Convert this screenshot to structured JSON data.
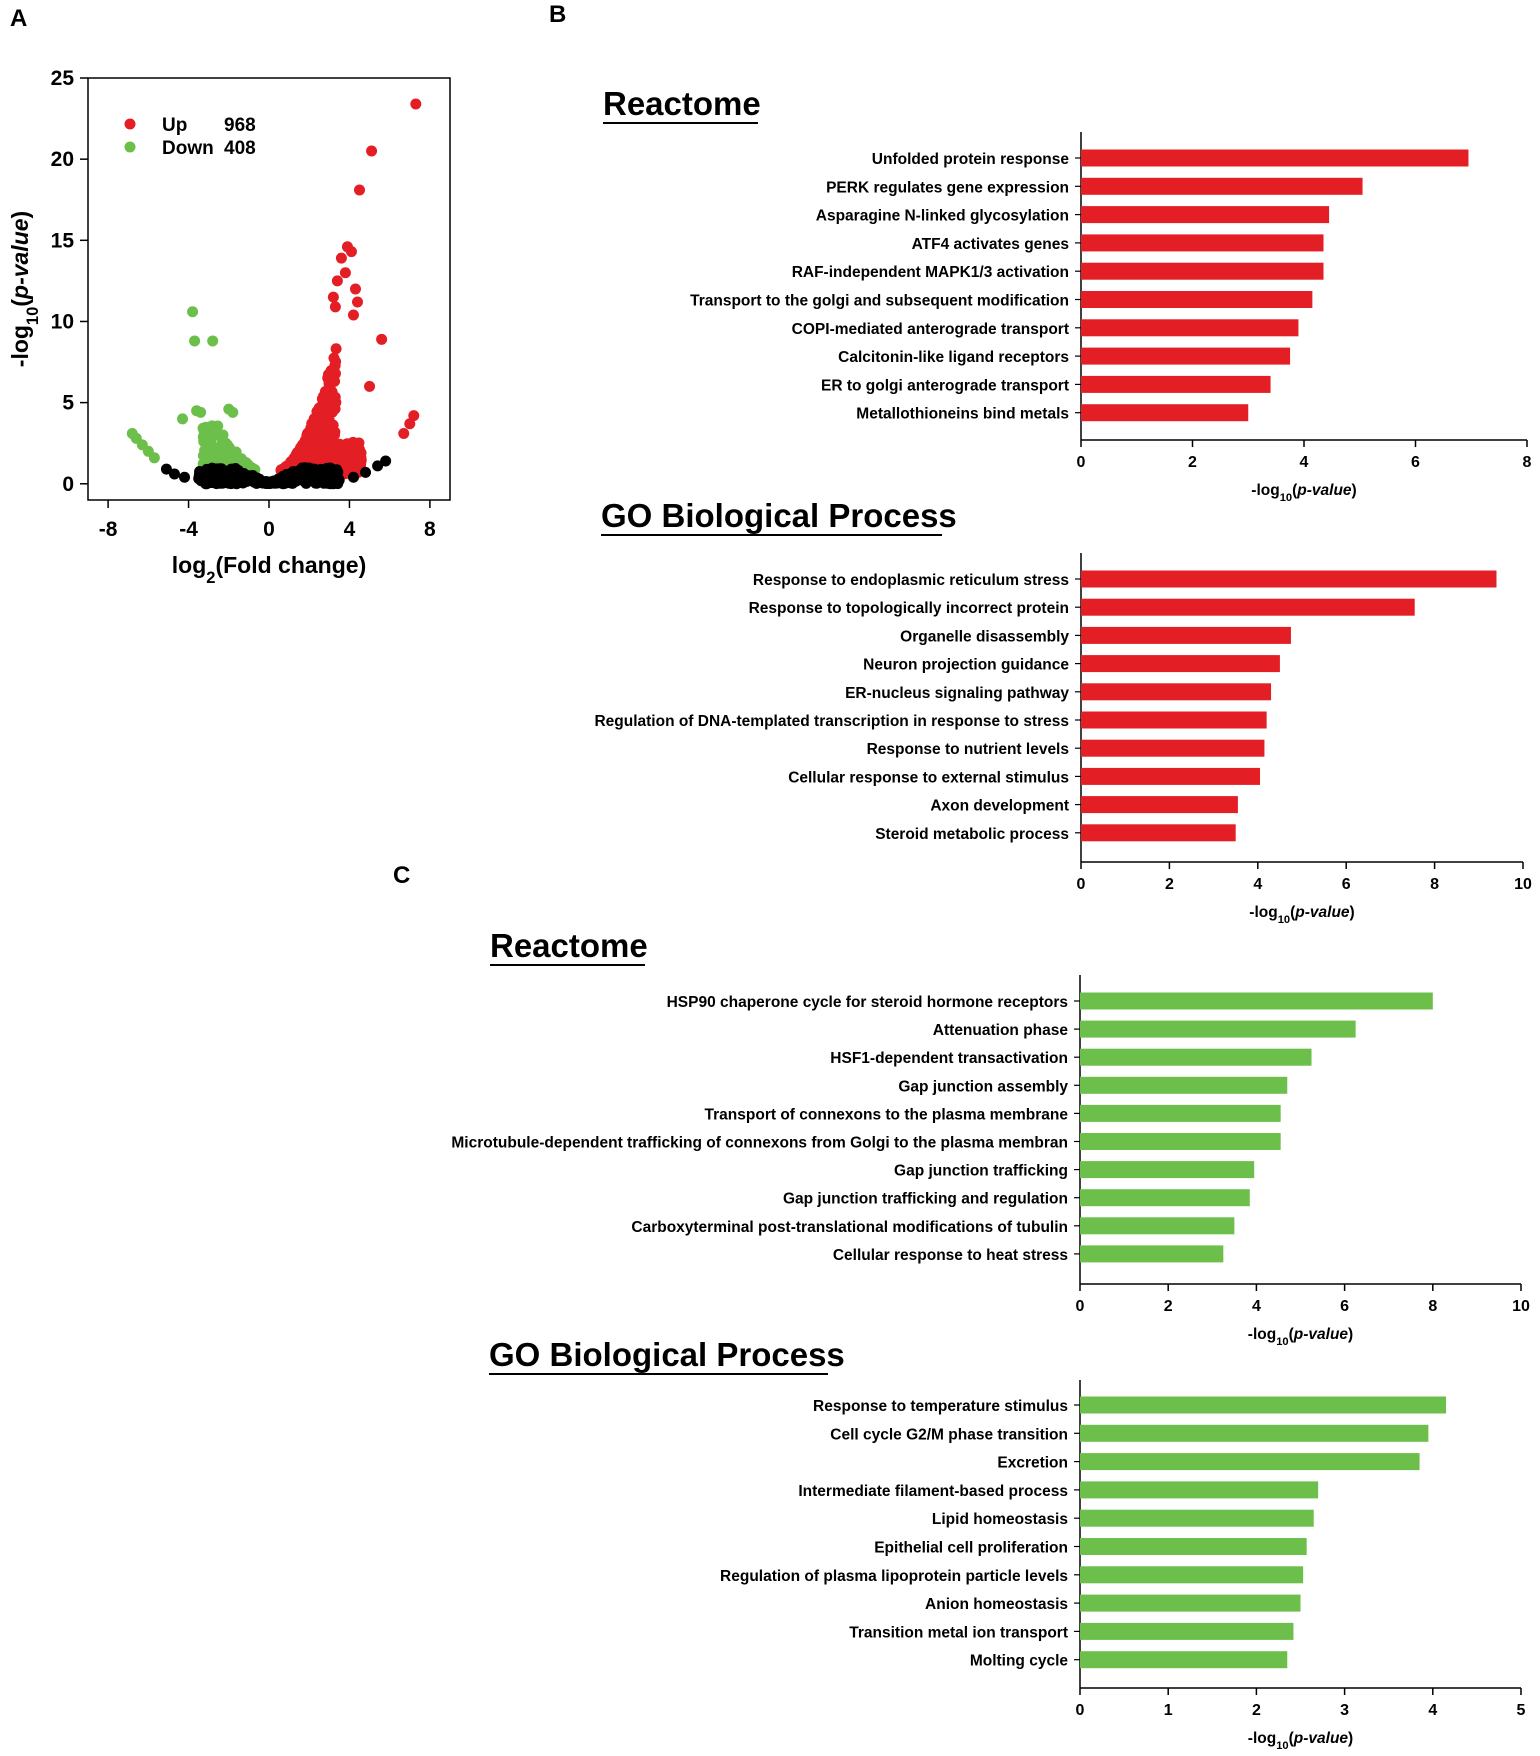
{
  "panels": {
    "A": "A",
    "B": "B",
    "C": "C"
  },
  "colors": {
    "up": "#e41e25",
    "down": "#6cbf4a",
    "ns": "#000000"
  },
  "chart_data": [
    {
      "id": "volcano",
      "type": "scatter",
      "title": "",
      "xlabel": "log2(Fold change)",
      "xlabel_parts": [
        "log",
        "2",
        "(Fold change)"
      ],
      "ylabel": "-log10(p-value)",
      "ylabel_parts": [
        "-log",
        "10",
        "(",
        "p-value",
        ")"
      ],
      "xlim": [
        -9,
        9
      ],
      "ylim": [
        -1,
        25
      ],
      "xticks": [
        -8,
        -4,
        0,
        4,
        8
      ],
      "yticks": [
        0,
        5,
        10,
        15,
        20,
        25
      ],
      "legend": [
        {
          "name": "Up",
          "count": "968"
        },
        {
          "name": "Down",
          "count": "408"
        }
      ],
      "series": [
        {
          "name": "Up",
          "points": [
            [
              7.3,
              23.4
            ],
            [
              5.1,
              20.5
            ],
            [
              4.5,
              18.1
            ],
            [
              3.9,
              14.6
            ],
            [
              4.1,
              14.3
            ],
            [
              3.6,
              13.9
            ],
            [
              3.8,
              13.0
            ],
            [
              3.4,
              12.5
            ],
            [
              4.3,
              12.0
            ],
            [
              3.2,
              11.5
            ],
            [
              4.4,
              11.2
            ],
            [
              3.3,
              10.9
            ],
            [
              4.2,
              10.4
            ],
            [
              5.6,
              8.9
            ],
            [
              5.0,
              6.0
            ],
            [
              7.2,
              4.2
            ],
            [
              7.0,
              3.7
            ],
            [
              6.7,
              3.1
            ]
          ]
        },
        {
          "name": "Down",
          "points": [
            [
              -3.8,
              10.6
            ],
            [
              -3.7,
              8.8
            ],
            [
              -2.8,
              8.8
            ],
            [
              -3.6,
              4.5
            ],
            [
              -3.4,
              4.4
            ],
            [
              -4.3,
              4.0
            ],
            [
              -2.0,
              4.6
            ],
            [
              -1.8,
              4.4
            ],
            [
              -6.8,
              3.1
            ],
            [
              -6.6,
              2.8
            ],
            [
              -6.3,
              2.4
            ],
            [
              -6.0,
              2.0
            ],
            [
              -5.7,
              1.6
            ]
          ]
        },
        {
          "name": "NS",
          "points": [
            [
              -5.1,
              0.9
            ],
            [
              -4.7,
              0.6
            ],
            [
              -4.2,
              0.4
            ],
            [
              -3.1,
              0.0
            ],
            [
              3.2,
              0.0
            ],
            [
              4.2,
              0.4
            ],
            [
              4.8,
              0.7
            ],
            [
              5.4,
              1.1
            ],
            [
              5.8,
              1.4
            ]
          ]
        }
      ]
    },
    {
      "id": "b-reactome",
      "type": "bar",
      "title": "Reactome",
      "xlabel": "-log10(p-value)",
      "xlabel_parts": [
        "-log",
        "10",
        "(",
        "p-value",
        ")"
      ],
      "xlim": [
        0,
        8
      ],
      "xticks": [
        0,
        2,
        4,
        6,
        8
      ],
      "categories": [
        "Unfolded protein response",
        "PERK regulates gene expression",
        "Asparagine N-linked glycosylation",
        "ATF4 activates genes",
        "RAF-independent MAPK1/3 activation",
        "Transport to the golgi and subsequent modification",
        "COPI-mediated anterograde transport",
        "Calcitonin-like ligand receptors",
        "ER to golgi anterograde transport",
        "Metallothioneins bind metals"
      ],
      "values": [
        6.95,
        5.05,
        4.45,
        4.35,
        4.35,
        4.15,
        3.9,
        3.75,
        3.4,
        3.0
      ],
      "color": "#e41e25"
    },
    {
      "id": "b-go",
      "type": "bar",
      "title": "GO Biological Process",
      "xlabel": "-log10(p-value)",
      "xlabel_parts": [
        "-log",
        "10",
        "(",
        "p-value",
        ")"
      ],
      "xlim": [
        0,
        10
      ],
      "xticks": [
        0,
        2,
        4,
        6,
        8,
        10
      ],
      "categories": [
        "Response to endoplasmic reticulum stress",
        "Response to topologically incorrect protein",
        "Organelle disassembly",
        "Neuron projection guidance",
        "ER-nucleus signaling pathway",
        "Regulation of DNA-templated transcription in response to stress",
        "Response to nutrient levels",
        "Cellular response to external stimulus",
        "Axon development",
        "Steroid metabolic process"
      ],
      "values": [
        9.4,
        7.55,
        4.75,
        4.5,
        4.3,
        4.2,
        4.15,
        4.05,
        3.55,
        3.5
      ],
      "color": "#e41e25"
    },
    {
      "id": "c-reactome",
      "type": "bar",
      "title": "Reactome",
      "xlabel": "-log10(p-value)",
      "xlabel_parts": [
        "-log",
        "10",
        "(",
        "p-value",
        ")"
      ],
      "xlim": [
        0,
        10
      ],
      "xticks": [
        0,
        2,
        4,
        6,
        8,
        10
      ],
      "categories": [
        "HSP90 chaperone cycle for steroid hormone receptors",
        "Attenuation phase",
        "HSF1-dependent transactivation",
        "Gap junction assembly",
        "Transport of connexons to the plasma membrane",
        "Microtubule-dependent trafficking of connexons from Golgi to the plasma membran",
        "Gap junction trafficking",
        "Gap junction trafficking and regulation",
        "Carboxyterminal post-translational modifications of tubulin",
        "Cellular response to heat stress"
      ],
      "values": [
        8.0,
        6.25,
        5.25,
        4.7,
        4.55,
        4.55,
        3.95,
        3.85,
        3.5,
        3.25
      ],
      "color": "#6cbf4a"
    },
    {
      "id": "c-go",
      "type": "bar",
      "title": "GO Biological Process",
      "xlabel": "-log10(p-value)",
      "xlabel_parts": [
        "-log",
        "10",
        "(",
        "p-value",
        ")"
      ],
      "xlim": [
        0,
        5
      ],
      "xticks": [
        0,
        1,
        2,
        3,
        4,
        5
      ],
      "categories": [
        "Response to temperature stimulus",
        "Cell cycle G2/M phase transition",
        "Excretion",
        "Intermediate filament-based process",
        "Lipid homeostasis",
        "Epithelial cell proliferation",
        "Regulation of plasma lipoprotein particle levels",
        "Anion homeostasis",
        "Transition metal ion transport",
        "Molting cycle"
      ],
      "values": [
        4.15,
        3.95,
        3.85,
        2.7,
        2.65,
        2.57,
        2.53,
        2.5,
        2.42,
        2.35
      ],
      "color": "#6cbf4a"
    }
  ]
}
